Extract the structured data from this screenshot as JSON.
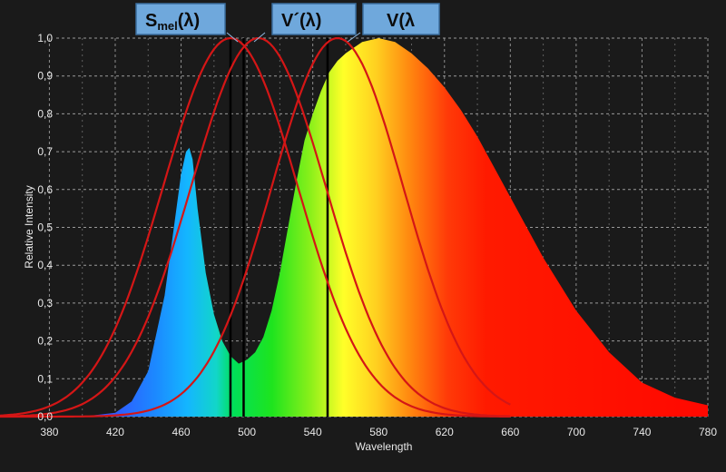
{
  "chart_data": {
    "type": "area",
    "xlabel": "Wavelength",
    "ylabel": "Relative Intensity",
    "xlim": [
      350,
      780
    ],
    "ylim": [
      0,
      1
    ],
    "x_ticks": [
      380,
      420,
      460,
      500,
      540,
      580,
      620,
      660,
      700,
      740,
      780
    ],
    "x_tick_labels": [
      "380",
      "420",
      "460",
      "500",
      "540",
      "580",
      "620",
      "660",
      "700",
      "740",
      "780"
    ],
    "y_ticks": [
      0,
      0.1,
      0.2,
      0.3,
      0.4,
      0.5,
      0.6,
      0.7,
      0.8,
      0.9,
      1.0
    ],
    "y_tick_labels": [
      "0,0",
      "0,1",
      "0,2",
      "0,3",
      "0,4",
      "0,5",
      "0,6",
      "0,7",
      "0,8",
      "0,9",
      "1,0"
    ],
    "grid": true,
    "spectrum": {
      "x": [
        380,
        400,
        420,
        430,
        440,
        450,
        455,
        460,
        463,
        465,
        467,
        470,
        475,
        480,
        485,
        490,
        495,
        500,
        505,
        510,
        515,
        520,
        525,
        530,
        535,
        540,
        545,
        550,
        555,
        560,
        570,
        580,
        590,
        600,
        610,
        620,
        630,
        640,
        660,
        680,
        700,
        720,
        740,
        760,
        780
      ],
      "y": [
        0.0,
        0.0,
        0.01,
        0.04,
        0.12,
        0.32,
        0.48,
        0.64,
        0.7,
        0.71,
        0.68,
        0.55,
        0.38,
        0.27,
        0.2,
        0.16,
        0.14,
        0.15,
        0.17,
        0.21,
        0.28,
        0.38,
        0.5,
        0.62,
        0.73,
        0.8,
        0.86,
        0.91,
        0.94,
        0.96,
        0.99,
        1.0,
        0.99,
        0.96,
        0.92,
        0.87,
        0.81,
        0.74,
        0.58,
        0.42,
        0.28,
        0.17,
        0.09,
        0.05,
        0.03
      ]
    },
    "series": [
      {
        "name": "Smel(λ)",
        "peak": 490,
        "sigma": 41,
        "peak_marker": 490
      },
      {
        "name": "V´(λ)",
        "peak": 507,
        "sigma": 41,
        "peak_marker": 498
      },
      {
        "name": "V(λ",
        "peak": 555,
        "sigma": 40,
        "peak_marker": 549
      }
    ]
  },
  "labels": {
    "smel_main": "S",
    "smel_sub": "mel",
    "smel_rest": "(λ)",
    "v_prime": "V´(λ)",
    "v": "V(λ"
  },
  "colors": {
    "background": "#1a1a1a",
    "grid": "#9a9a9a",
    "curve": "#d41616",
    "marker": "#000000",
    "label_box": "#6fa8dc"
  }
}
